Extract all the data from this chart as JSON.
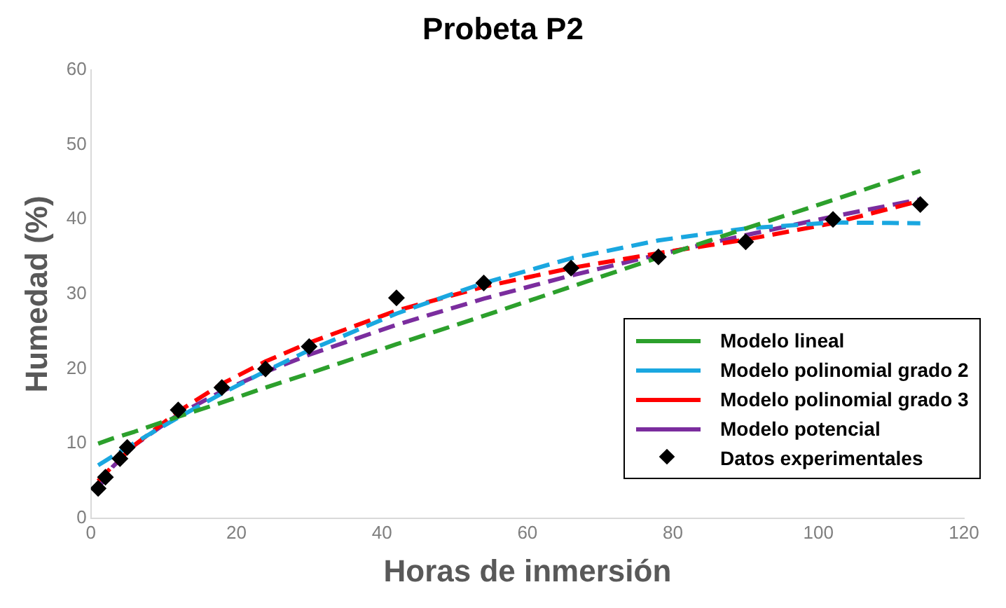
{
  "chart_data": {
    "type": "line",
    "title": "Probeta P2",
    "xlabel": "Horas de inmersión",
    "ylabel": "Humedad (%)",
    "xlim": [
      0,
      120
    ],
    "xticks": [
      0,
      20,
      40,
      60,
      80,
      100,
      120
    ],
    "ylim": [
      0,
      60
    ],
    "yticks": [
      0,
      10,
      20,
      30,
      40,
      50,
      60
    ],
    "grid": false,
    "legend": "bottom right",
    "marker": "none",
    "series": [
      {
        "name": "Modelo lineal",
        "color": "#2ca02c",
        "line_style": "dashed",
        "x": [
          1,
          3,
          6,
          12,
          18,
          24,
          30,
          42,
          54,
          66,
          78,
          90,
          102,
          114
        ],
        "values": [
          10.0,
          10.7,
          11.6,
          13.6,
          15.5,
          17.5,
          19.4,
          23.3,
          27.1,
          31.0,
          34.9,
          38.8,
          42.6,
          46.5
        ]
      },
      {
        "name": "Modelo polinomial grado 2",
        "color": "#1aa7e0",
        "line_style": "dashed",
        "x": [
          1,
          3,
          6,
          12,
          18,
          24,
          30,
          42,
          54,
          66,
          78,
          90,
          102,
          114
        ],
        "values": [
          7.1,
          8.3,
          10.1,
          13.5,
          16.7,
          19.7,
          22.5,
          27.4,
          31.5,
          34.8,
          37.2,
          38.8,
          39.6,
          39.5
        ]
      },
      {
        "name": "Modelo polinomial grado 3",
        "color": "#ff0000",
        "line_style": "dashed",
        "x": [
          1,
          3,
          6,
          12,
          18,
          24,
          30,
          42,
          54,
          66,
          78,
          90,
          102,
          114
        ],
        "values": [
          5.0,
          7.0,
          9.8,
          14.3,
          18.0,
          21.0,
          23.5,
          27.8,
          31.0,
          33.5,
          35.5,
          37.3,
          39.5,
          42.5
        ]
      },
      {
        "name": "Modelo potencial",
        "color": "#7b2d9e",
        "line_style": "dashed",
        "x": [
          1,
          3,
          6,
          12,
          18,
          24,
          30,
          42,
          54,
          66,
          78,
          90,
          102,
          114
        ],
        "values": [
          4.0,
          6.9,
          9.8,
          13.9,
          17.0,
          19.6,
          21.9,
          25.9,
          29.4,
          32.5,
          35.3,
          37.9,
          40.4,
          42.7
        ]
      },
      {
        "name": "Datos experimentales",
        "type": "scatter",
        "color": "#000000",
        "marker": "diamond",
        "x": [
          1,
          2,
          4,
          5,
          12,
          18,
          24,
          30,
          42,
          54,
          66,
          78,
          90,
          102,
          114
        ],
        "values": [
          4,
          5.5,
          8,
          9.5,
          14.5,
          17.5,
          20,
          23,
          29.5,
          31.5,
          33.5,
          35,
          37,
          40,
          42
        ]
      }
    ]
  }
}
